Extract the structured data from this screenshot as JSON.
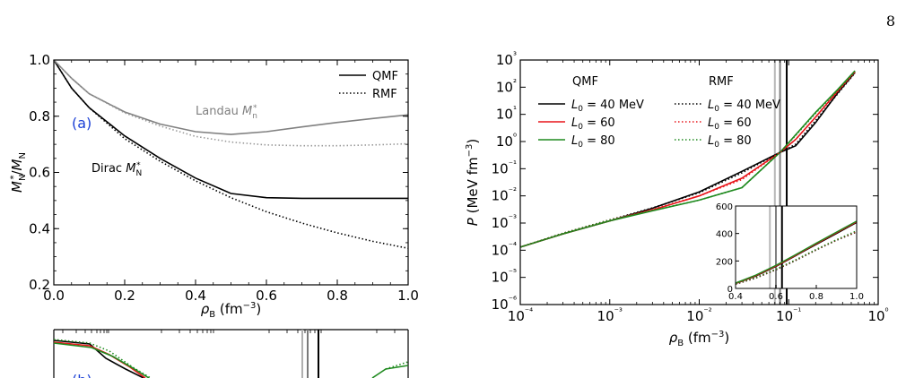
{
  "page": {
    "number": "8"
  },
  "figure_a": {
    "panel_label": "(a)",
    "annotations": {
      "landau": "Landau M*n",
      "dirac": "Dirac M*N"
    },
    "legend": {
      "qmf": "QMF",
      "rmf": "RMF"
    },
    "ylabel": "M*N/MN",
    "xlabel": "ρB (fm⁻³)",
    "chart_data": {
      "type": "line",
      "xlim": [
        0.0,
        1.0
      ],
      "ylim": [
        0.2,
        1.0
      ],
      "xticks": [
        "0.0",
        "0.2",
        "0.4",
        "0.6",
        "0.8",
        "1.0"
      ],
      "yticks": [
        "0.2",
        "0.4",
        "0.6",
        "0.8",
        "1.0"
      ],
      "series": [
        {
          "name": "Dirac QMF",
          "color": "#000000",
          "style": "solid",
          "x": [
            0,
            0.05,
            0.1,
            0.2,
            0.3,
            0.4,
            0.5,
            0.6,
            0.7,
            0.8,
            0.9,
            1.0
          ],
          "y": [
            1.0,
            0.9,
            0.83,
            0.73,
            0.65,
            0.58,
            0.525,
            0.51,
            0.508,
            0.508,
            0.508,
            0.508
          ]
        },
        {
          "name": "Dirac RMF",
          "color": "#000000",
          "style": "dotted",
          "x": [
            0,
            0.05,
            0.1,
            0.2,
            0.3,
            0.4,
            0.5,
            0.6,
            0.7,
            0.8,
            0.9,
            1.0
          ],
          "y": [
            1.0,
            0.9,
            0.83,
            0.72,
            0.64,
            0.57,
            0.51,
            0.46,
            0.42,
            0.385,
            0.355,
            0.33
          ]
        },
        {
          "name": "Landau QMF",
          "color": "#808080",
          "style": "solid",
          "x": [
            0,
            0.05,
            0.1,
            0.2,
            0.3,
            0.4,
            0.5,
            0.6,
            0.7,
            0.8,
            0.9,
            1.0
          ],
          "y": [
            1.0,
            0.935,
            0.88,
            0.815,
            0.772,
            0.745,
            0.735,
            0.745,
            0.762,
            0.778,
            0.792,
            0.805
          ]
        },
        {
          "name": "Landau RMF",
          "color": "#999999",
          "style": "dotted",
          "x": [
            0,
            0.05,
            0.1,
            0.2,
            0.3,
            0.4,
            0.5,
            0.6,
            0.7,
            0.8,
            0.9,
            1.0
          ],
          "y": [
            1.0,
            0.935,
            0.88,
            0.812,
            0.765,
            0.728,
            0.708,
            0.698,
            0.695,
            0.695,
            0.698,
            0.702
          ]
        }
      ]
    }
  },
  "figure_b": {
    "panel_label": "(b)"
  },
  "figure_c": {
    "group_labels": {
      "qmf": "QMF",
      "rmf": "RMF"
    },
    "legend": [
      "L0 = 40 MeV",
      "L0 = 60",
      "L0 = 80"
    ],
    "ylabel": "P (MeV fm⁻³)",
    "xlabel": "ρB (fm⁻³)",
    "chart_data": {
      "type": "line",
      "xscale": "log",
      "yscale": "log",
      "xlim": [
        0.0001,
        1.0
      ],
      "ylim": [
        1e-06,
        1000
      ],
      "xticks": [
        "10⁻⁴",
        "10⁻³",
        "10⁻²",
        "10⁻¹",
        "10⁰"
      ],
      "yticks": [
        "10⁻⁶",
        "10⁻⁵",
        "10⁻⁴",
        "10⁻³",
        "10⁻²",
        "10⁻¹",
        "10⁰",
        "10¹",
        "10²",
        "10³"
      ],
      "vertical_lines_x": [
        0.07,
        0.08,
        0.095
      ],
      "series": [
        {
          "name": "QMF L0 = 40 MeV",
          "color": "#000000",
          "style": "solid",
          "x": [
            0.0001,
            0.0003,
            0.001,
            0.003,
            0.01,
            0.03,
            0.08,
            0.12,
            0.2,
            0.35,
            0.55
          ],
          "y": [
            0.00013,
            0.0004,
            0.0012,
            0.0035,
            0.014,
            0.08,
            0.4,
            0.7,
            5,
            60,
            350
          ]
        },
        {
          "name": "QMF L0 = 60",
          "color": "#e8151a",
          "style": "solid",
          "x": [
            0.0001,
            0.0003,
            0.001,
            0.003,
            0.01,
            0.03,
            0.08,
            0.12,
            0.2,
            0.35,
            0.55
          ],
          "y": [
            0.00013,
            0.0004,
            0.0012,
            0.003,
            0.01,
            0.045,
            0.4,
            1.2,
            8,
            70,
            380
          ]
        },
        {
          "name": "QMF L0 = 80",
          "color": "#1f8a1f",
          "style": "solid",
          "x": [
            0.0001,
            0.0003,
            0.001,
            0.003,
            0.01,
            0.03,
            0.08,
            0.12,
            0.2,
            0.35,
            0.55
          ],
          "y": [
            0.00013,
            0.0004,
            0.0012,
            0.0028,
            0.007,
            0.02,
            0.4,
            1.8,
            12,
            80,
            400
          ]
        },
        {
          "name": "RMF L0 = 40 MeV",
          "color": "#000000",
          "style": "dotted",
          "x": [
            0.0001,
            0.0003,
            0.001,
            0.003,
            0.01,
            0.03,
            0.08,
            0.12,
            0.2,
            0.35,
            0.55
          ],
          "y": [
            0.00013,
            0.00042,
            0.0013,
            0.0036,
            0.013,
            0.07,
            0.4,
            0.8,
            6,
            55,
            330
          ]
        },
        {
          "name": "RMF L0 = 60",
          "color": "#e8151a",
          "style": "dotted",
          "x": [
            0.0001,
            0.0003,
            0.001,
            0.003,
            0.01,
            0.03,
            0.08,
            0.12,
            0.2,
            0.35,
            0.55
          ],
          "y": [
            0.00013,
            0.00042,
            0.0013,
            0.0032,
            0.01,
            0.04,
            0.4,
            1.2,
            8,
            65,
            360
          ]
        },
        {
          "name": "RMF L0 = 80",
          "color": "#1f8a1f",
          "style": "dotted",
          "x": [
            0.0001,
            0.0003,
            0.001,
            0.003,
            0.01,
            0.03,
            0.08,
            0.12,
            0.2,
            0.35,
            0.55
          ],
          "y": [
            0.00013,
            0.00042,
            0.0013,
            0.0029,
            0.007,
            0.02,
            0.4,
            1.7,
            11,
            75,
            380
          ]
        }
      ],
      "inset": {
        "xlim": [
          0.4,
          1.0
        ],
        "ylim": [
          0,
          600
        ],
        "xticks": [
          "0.4",
          "0.6",
          "0.8",
          "1.0"
        ],
        "yticks": [
          "0",
          "200",
          "400",
          "600"
        ],
        "series": [
          {
            "name": "QMF L0 = 40 MeV",
            "color": "#000000",
            "style": "solid",
            "x": [
              0.4,
              0.5,
              0.6,
              0.7,
              0.8,
              0.9,
              1.0
            ],
            "y": [
              35,
              90,
              160,
              240,
              320,
              400,
              480
            ]
          },
          {
            "name": "QMF L0 = 60",
            "color": "#e8151a",
            "style": "solid",
            "x": [
              0.4,
              0.5,
              0.6,
              0.7,
              0.8,
              0.9,
              1.0
            ],
            "y": [
              37,
              93,
              163,
              243,
              325,
              405,
              485
            ]
          },
          {
            "name": "QMF L0 = 80",
            "color": "#1f8a1f",
            "style": "solid",
            "x": [
              0.4,
              0.5,
              0.6,
              0.7,
              0.8,
              0.9,
              1.0
            ],
            "y": [
              40,
              97,
              168,
              248,
              330,
              410,
              490
            ]
          },
          {
            "name": "RMF L0 = 40 MeV",
            "color": "#000000",
            "style": "dotted",
            "x": [
              0.4,
              0.5,
              0.6,
              0.7,
              0.8,
              0.9,
              1.0
            ],
            "y": [
              30,
              75,
              135,
              205,
              280,
              350,
              410
            ]
          },
          {
            "name": "RMF L0 = 60",
            "color": "#e8151a",
            "style": "dotted",
            "x": [
              0.4,
              0.5,
              0.6,
              0.7,
              0.8,
              0.9,
              1.0
            ],
            "y": [
              32,
              78,
              138,
              208,
              283,
              353,
              415
            ]
          },
          {
            "name": "RMF L0 = 80",
            "color": "#1f8a1f",
            "style": "dotted",
            "x": [
              0.4,
              0.5,
              0.6,
              0.7,
              0.8,
              0.9,
              1.0
            ],
            "y": [
              34,
              80,
              140,
              210,
              285,
              355,
              420
            ]
          }
        ]
      }
    }
  }
}
